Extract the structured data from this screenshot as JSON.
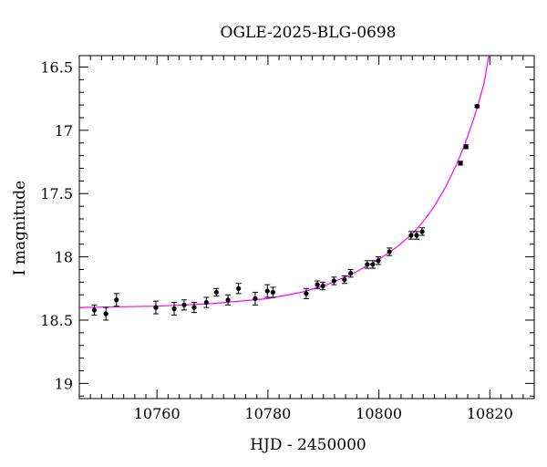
{
  "chart_data": {
    "type": "scatter",
    "title": "OGLE-2025-BLG-0698",
    "xlabel": "HJD - 2450000",
    "ylabel": "I magnitude",
    "xlim": [
      10746,
      10828
    ],
    "ylim": [
      19.12,
      16.41
    ],
    "y_inverted": true,
    "grid": false,
    "xticks": [
      10760,
      10780,
      10800,
      10820
    ],
    "xtick_labels": [
      "10760",
      "10780",
      "10800",
      "10820"
    ],
    "yticks": [
      16.5,
      17,
      17.5,
      18,
      18.5,
      19
    ],
    "ytick_labels": [
      "16.5",
      "17",
      "17.5",
      "18",
      "18.5",
      "19"
    ],
    "series": [
      {
        "kind": "points_with_errorbars",
        "color": "#000000",
        "points": [
          {
            "x": 10748.7,
            "y": 18.42,
            "err": 0.04
          },
          {
            "x": 10750.8,
            "y": 18.45,
            "err": 0.05
          },
          {
            "x": 10752.7,
            "y": 18.34,
            "err": 0.05
          },
          {
            "x": 10759.8,
            "y": 18.4,
            "err": 0.05
          },
          {
            "x": 10763.1,
            "y": 18.41,
            "err": 0.05
          },
          {
            "x": 10764.9,
            "y": 18.38,
            "err": 0.04
          },
          {
            "x": 10766.7,
            "y": 18.4,
            "err": 0.04
          },
          {
            "x": 10768.9,
            "y": 18.36,
            "err": 0.04
          },
          {
            "x": 10770.7,
            "y": 18.28,
            "err": 0.03
          },
          {
            "x": 10772.8,
            "y": 18.34,
            "err": 0.04
          },
          {
            "x": 10774.7,
            "y": 18.25,
            "err": 0.04
          },
          {
            "x": 10777.7,
            "y": 18.33,
            "err": 0.05
          },
          {
            "x": 10779.9,
            "y": 18.27,
            "err": 0.05
          },
          {
            "x": 10780.9,
            "y": 18.28,
            "err": 0.04
          },
          {
            "x": 10786.9,
            "y": 18.29,
            "err": 0.04
          },
          {
            "x": 10788.9,
            "y": 18.22,
            "err": 0.03
          },
          {
            "x": 10789.9,
            "y": 18.23,
            "err": 0.03
          },
          {
            "x": 10791.9,
            "y": 18.19,
            "err": 0.03
          },
          {
            "x": 10793.8,
            "y": 18.18,
            "err": 0.03
          },
          {
            "x": 10794.9,
            "y": 18.13,
            "err": 0.03
          },
          {
            "x": 10797.9,
            "y": 18.06,
            "err": 0.03
          },
          {
            "x": 10798.9,
            "y": 18.06,
            "err": 0.03
          },
          {
            "x": 10799.9,
            "y": 18.03,
            "err": 0.03
          },
          {
            "x": 10801.9,
            "y": 17.96,
            "err": 0.03
          },
          {
            "x": 10805.8,
            "y": 17.83,
            "err": 0.03
          },
          {
            "x": 10806.8,
            "y": 17.83,
            "err": 0.03
          },
          {
            "x": 10807.8,
            "y": 17.8,
            "err": 0.03
          },
          {
            "x": 10814.7,
            "y": 17.26,
            "err": 0.015
          },
          {
            "x": 10815.7,
            "y": 17.13,
            "err": 0.015
          },
          {
            "x": 10817.7,
            "y": 16.81,
            "err": 0.01
          }
        ]
      },
      {
        "kind": "model_curve",
        "color": "#ff00ff",
        "points": [
          {
            "x": 10746,
            "y": 18.4
          },
          {
            "x": 10760,
            "y": 18.39
          },
          {
            "x": 10770,
            "y": 18.37
          },
          {
            "x": 10780,
            "y": 18.33
          },
          {
            "x": 10786,
            "y": 18.28
          },
          {
            "x": 10790,
            "y": 18.23
          },
          {
            "x": 10795,
            "y": 18.14
          },
          {
            "x": 10800,
            "y": 18.02
          },
          {
            "x": 10803,
            "y": 17.93
          },
          {
            "x": 10806,
            "y": 17.82
          },
          {
            "x": 10808,
            "y": 17.72
          },
          {
            "x": 10810,
            "y": 17.6
          },
          {
            "x": 10812,
            "y": 17.45
          },
          {
            "x": 10814,
            "y": 17.27
          },
          {
            "x": 10815.5,
            "y": 17.11
          },
          {
            "x": 10817,
            "y": 16.92
          },
          {
            "x": 10818,
            "y": 16.78
          },
          {
            "x": 10819,
            "y": 16.62
          },
          {
            "x": 10819.8,
            "y": 16.41
          }
        ]
      }
    ]
  }
}
